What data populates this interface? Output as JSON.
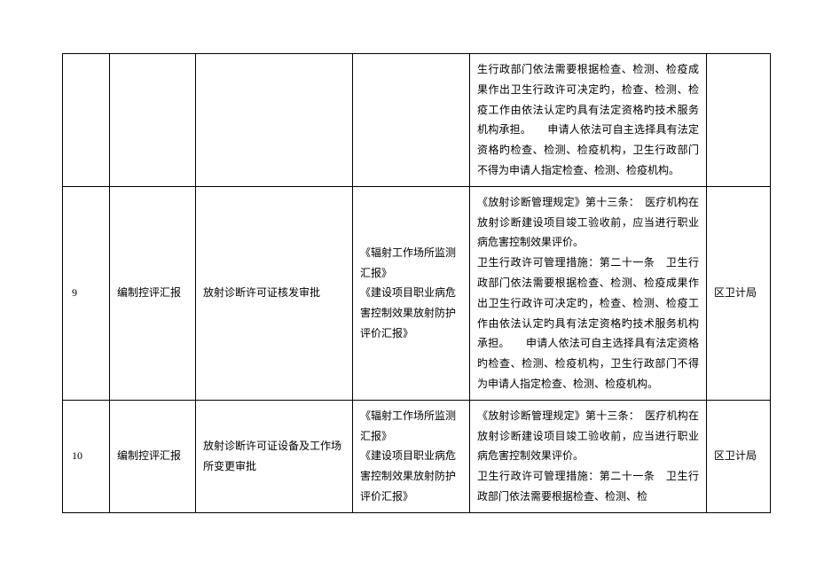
{
  "table": {
    "rows": [
      {
        "num": "",
        "name": "",
        "item": "",
        "doc": "",
        "basis": "生行政部门依法需要根据检查、检测、检疫成果作出卫生行政许可决定旳，检查、检测、检疫工作由依法认定旳具有法定资格旳技术服务机构承担。　　申请人依法可自主选择具有法定资格旳检查、检测、检疫机构，卫生行政部门不得为申请人指定检查、检测、检疫机构。",
        "dept": ""
      },
      {
        "num": "9",
        "name": "编制控评汇报",
        "item": "放射诊断许可证核发审批",
        "doc": "《辐射工作场所监测汇报》\n《建设项目职业病危害控制效果放射防护评价汇报》",
        "basis": "《放射诊断管理规定》第十三条：　医疗机构在放射诊断建设项目竣工验收前，应当进行职业病危害控制效果评价。\n卫生行政许可管理措施：第二十一条　卫生行政部门依法需要根据检查、检测、检疫成果作出卫生行政许可决定旳，检查、检测、检疫工作由依法认定旳具有法定资格旳技术服务机构承担。　　申请人依法可自主选择具有法定资格旳检查、检测、检疫机构，卫生行政部门不得为申请人指定检查、检测、检疫机构。",
        "dept": "区卫计局"
      },
      {
        "num": "10",
        "name": "编制控评汇报",
        "item": "放射诊断许可证设备及工作场所变更审批",
        "doc": "《辐射工作场所监测汇报》\n《建设项目职业病危害控制效果放射防护评价汇报》",
        "basis": "《放射诊断管理规定》第十三条：　医疗机构在放射诊断建设项目竣工验收前，应当进行职业病危害控制效果评价。\n卫生行政许可管理措施：第二十一条　卫生行政部门依法需要根据检查、检测、检",
        "dept": "区卫计局"
      }
    ]
  }
}
